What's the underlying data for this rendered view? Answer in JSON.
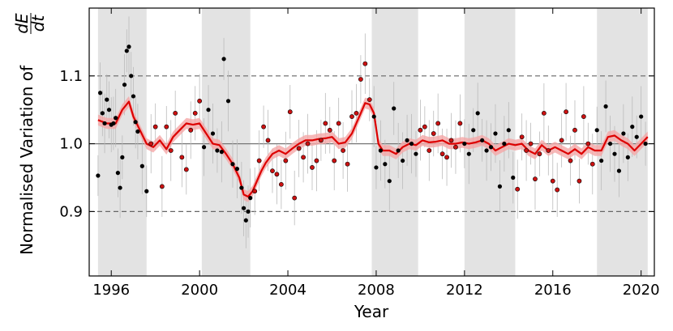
{
  "chart_data": {
    "type": "scatter",
    "xlabel": "Year",
    "ylabel": {
      "prefix": "Normalised Variation of",
      "numerator": "dE",
      "denominator": "dt"
    },
    "xlim": [
      1995.0,
      2020.6
    ],
    "ylim": [
      0.805,
      1.2
    ],
    "x_ticks": [
      1996,
      2000,
      2004,
      2008,
      2012,
      2016,
      2020
    ],
    "y_ticks": [
      0.9,
      1.0,
      1.1
    ],
    "reference_lines": [
      {
        "y": 1.0,
        "style": "solid"
      },
      {
        "y": 1.1,
        "style": "dashed"
      },
      {
        "y": 0.9,
        "style": "dashed"
      }
    ],
    "shaded_intervals": [
      [
        1995.4,
        1997.6
      ],
      [
        2000.1,
        2002.3
      ],
      [
        2007.8,
        2009.9
      ],
      [
        2012.0,
        2014.3
      ],
      [
        2018.0,
        2020.3
      ]
    ],
    "colors": {
      "trend_line": "#dd0000",
      "trend_band": "#f4a6a6",
      "black_points": "#000000",
      "red_points": "#cc1111",
      "shading": "#e3e3e3",
      "errorbars": "#bbbbbb"
    },
    "trend": {
      "x": [
        1995.4,
        1995.8,
        1996.2,
        1996.5,
        1996.8,
        1997.0,
        1997.3,
        1997.6,
        1997.9,
        1998.2,
        1998.5,
        1998.8,
        1999.1,
        1999.4,
        1999.7,
        2000.0,
        2000.3,
        2000.6,
        2000.9,
        2001.2,
        2001.5,
        2001.8,
        2002.0,
        2002.2,
        2002.4,
        2002.6,
        2002.8,
        2003.0,
        2003.3,
        2003.6,
        2003.9,
        2004.2,
        2004.5,
        2004.8,
        2005.1,
        2005.4,
        2005.7,
        2006.0,
        2006.3,
        2006.6,
        2006.9,
        2007.1,
        2007.3,
        2007.5,
        2007.7,
        2007.9,
        2008.1,
        2008.3,
        2008.6,
        2008.9,
        2009.2,
        2009.5,
        2009.8,
        2010.1,
        2010.4,
        2010.7,
        2011.0,
        2011.3,
        2011.6,
        2011.9,
        2012.2,
        2012.5,
        2012.8,
        2013.1,
        2013.4,
        2013.7,
        2014.0,
        2014.3,
        2014.6,
        2014.9,
        2015.2,
        2015.5,
        2015.8,
        2016.1,
        2016.4,
        2016.7,
        2017.0,
        2017.3,
        2017.6,
        2017.9,
        2018.2,
        2018.5,
        2018.8,
        2019.1,
        2019.4,
        2019.7,
        2020.0,
        2020.3
      ],
      "y": [
        1.035,
        1.03,
        1.03,
        1.05,
        1.062,
        1.04,
        1.02,
        1.0,
        0.995,
        1.005,
        0.992,
        1.01,
        1.02,
        1.03,
        1.028,
        1.03,
        1.015,
        1.0,
        0.998,
        0.985,
        0.97,
        0.95,
        0.925,
        0.922,
        0.93,
        0.945,
        0.96,
        0.972,
        0.985,
        0.99,
        0.985,
        0.993,
        1.0,
        1.005,
        1.005,
        1.007,
        1.008,
        1.01,
        1.0,
        1.002,
        1.015,
        1.03,
        1.045,
        1.06,
        1.058,
        1.045,
        1.0,
        0.99,
        0.99,
        0.985,
        0.995,
        1.0,
        0.998,
        1.005,
        1.002,
        1.003,
        1.005,
        1.0,
        1.0,
        1.002,
        1.0,
        1.002,
        1.005,
        1.0,
        0.99,
        0.995,
        1.0,
        0.998,
        1.0,
        0.99,
        0.985,
        0.998,
        0.99,
        0.995,
        0.99,
        0.985,
        0.992,
        0.985,
        0.995,
        0.99,
        0.99,
        1.01,
        1.012,
        1.005,
        1.0,
        0.99,
        1.0,
        1.01
      ]
    },
    "points": {
      "x": [
        1995.4,
        1995.5,
        1995.6,
        1995.7,
        1995.8,
        1995.9,
        1996.0,
        1996.1,
        1996.2,
        1996.3,
        1996.4,
        1996.5,
        1996.6,
        1996.7,
        1996.8,
        1996.9,
        1997.0,
        1997.1,
        1997.2,
        1997.4,
        1997.6,
        1997.8,
        1998.0,
        1998.3,
        1998.5,
        1998.7,
        1998.9,
        1999.2,
        1999.4,
        1999.6,
        1999.8,
        2000.0,
        2000.2,
        2000.4,
        2000.6,
        2000.8,
        2001.0,
        2001.1,
        2001.3,
        2001.5,
        2001.7,
        2001.9,
        2002.0,
        2002.1,
        2002.2,
        2002.3,
        2002.5,
        2002.7,
        2002.9,
        2003.1,
        2003.3,
        2003.5,
        2003.7,
        2003.9,
        2004.1,
        2004.3,
        2004.5,
        2004.7,
        2004.9,
        2005.1,
        2005.3,
        2005.5,
        2005.7,
        2005.9,
        2006.1,
        2006.3,
        2006.5,
        2006.7,
        2006.9,
        2007.1,
        2007.3,
        2007.5,
        2007.7,
        2007.9,
        2008.0,
        2008.2,
        2008.4,
        2008.6,
        2008.8,
        2009.0,
        2009.2,
        2009.4,
        2009.6,
        2009.8,
        2010.0,
        2010.2,
        2010.4,
        2010.6,
        2010.8,
        2011.0,
        2011.2,
        2011.4,
        2011.6,
        2011.8,
        2012.0,
        2012.2,
        2012.4,
        2012.6,
        2012.8,
        2013.0,
        2013.2,
        2013.4,
        2013.6,
        2013.8,
        2014.0,
        2014.2,
        2014.4,
        2014.6,
        2014.8,
        2015.0,
        2015.2,
        2015.4,
        2015.6,
        2015.8,
        2016.0,
        2016.2,
        2016.4,
        2016.6,
        2016.8,
        2017.0,
        2017.2,
        2017.4,
        2017.6,
        2017.8,
        2018.0,
        2018.2,
        2018.4,
        2018.6,
        2018.8,
        2019.0,
        2019.2,
        2019.4,
        2019.6,
        2019.8,
        2020.0,
        2020.2
      ],
      "y": [
        0.953,
        1.075,
        1.045,
        1.03,
        1.065,
        1.05,
        1.028,
        1.03,
        1.038,
        0.957,
        0.935,
        0.98,
        1.087,
        1.137,
        1.143,
        1.1,
        1.07,
        1.032,
        1.018,
        0.967,
        0.93,
        1.0,
        1.025,
        0.937,
        1.025,
        0.99,
        1.045,
        0.98,
        0.962,
        1.02,
        1.045,
        1.063,
        0.995,
        1.05,
        1.015,
        0.99,
        0.988,
        1.125,
        1.063,
        0.97,
        0.963,
        0.935,
        0.905,
        0.887,
        0.9,
        0.92,
        0.93,
        0.975,
        1.025,
        1.005,
        0.96,
        0.955,
        0.94,
        0.975,
        1.047,
        0.92,
        0.993,
        0.98,
        1.0,
        0.965,
        0.975,
        1.005,
        1.03,
        1.02,
        0.975,
        1.03,
        0.99,
        0.97,
        1.04,
        1.045,
        1.095,
        1.118,
        1.065,
        1.04,
        0.965,
        0.99,
        0.97,
        0.945,
        1.052,
        0.99,
        0.975,
        1.005,
        1.0,
        0.985,
        1.02,
        1.025,
        0.99,
        1.015,
        1.03,
        0.985,
        0.98,
        1.005,
        0.995,
        1.03,
        1.0,
        0.985,
        1.02,
        1.045,
        1.005,
        0.99,
        0.995,
        1.015,
        0.937,
        1.0,
        1.02,
        0.95,
        0.933,
        1.01,
        0.99,
        1.0,
        0.948,
        0.985,
        1.045,
        0.99,
        0.945,
        0.932,
        1.005,
        1.047,
        0.975,
        1.02,
        0.945,
        1.04,
        1.0,
        0.97,
        1.02,
        0.975,
        1.055,
        1.0,
        0.985,
        0.96,
        1.015,
        0.98,
        1.025,
        1.01,
        1.04,
        1.0
      ]
    }
  }
}
